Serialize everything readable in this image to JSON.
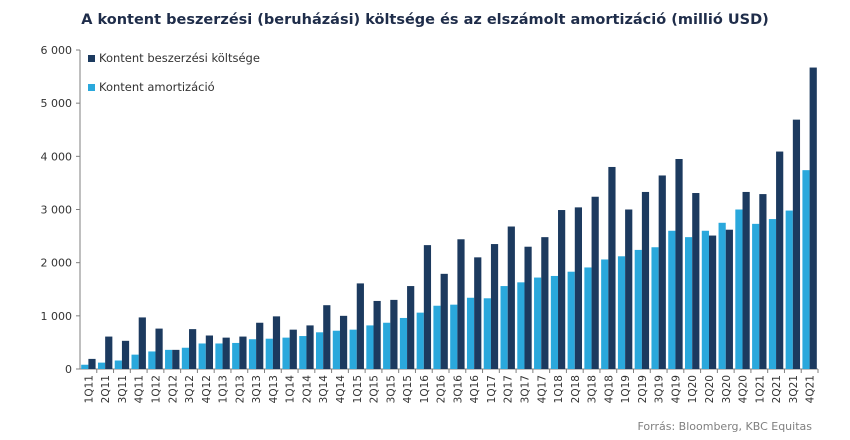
{
  "chart_data": {
    "type": "bar",
    "title": "A kontent beszerzési (beruházási) költsége és az elszámolt amortizáció (millió USD)",
    "source": "Forrás: Bloomberg, KBC Equitas",
    "legend_position": "top-left",
    "grid": false,
    "ylim": [
      0,
      6000
    ],
    "yticks": [
      0,
      1000,
      2000,
      3000,
      4000,
      5000,
      6000
    ],
    "ytick_labels": [
      "0",
      "1 000",
      "2 000",
      "3 000",
      "4 000",
      "5 000",
      "6 000"
    ],
    "categories": [
      "1Q11",
      "2Q11",
      "3Q11",
      "4Q11",
      "1Q12",
      "2Q12",
      "3Q12",
      "4Q12",
      "1Q13",
      "2Q13",
      "3Q13",
      "4Q13",
      "1Q14",
      "2Q14",
      "3Q14",
      "4Q14",
      "1Q15",
      "2Q15",
      "3Q15",
      "4Q15",
      "1Q16",
      "2Q16",
      "3Q16",
      "4Q16",
      "1Q17",
      "2Q17",
      "3Q17",
      "4Q17",
      "1Q18",
      "2Q18",
      "3Q18",
      "4Q18",
      "1Q19",
      "2Q19",
      "3Q19",
      "4Q19",
      "1Q20",
      "2Q20",
      "3Q20",
      "4Q20",
      "1Q21",
      "2Q21",
      "3Q21",
      "4Q21"
    ],
    "series": [
      {
        "name": "Kontent beszerzési költsége",
        "color": "#1c3a5f",
        "values": [
          190,
          610,
          530,
          970,
          760,
          360,
          750,
          630,
          590,
          610,
          870,
          990,
          740,
          820,
          1200,
          1000,
          1610,
          1280,
          1300,
          1560,
          2330,
          1790,
          2440,
          2100,
          2350,
          2680,
          2300,
          2480,
          2990,
          3040,
          3240,
          3800,
          3000,
          3330,
          3640,
          3950,
          3310,
          2510,
          2620,
          3330,
          3290,
          4090,
          4690,
          5670
        ]
      },
      {
        "name": "Kontent amortizáció",
        "color": "#2aa8dc",
        "values": [
          80,
          120,
          160,
          270,
          330,
          360,
          400,
          480,
          480,
          490,
          560,
          570,
          590,
          620,
          690,
          720,
          740,
          820,
          870,
          960,
          1060,
          1190,
          1210,
          1340,
          1330,
          1560,
          1630,
          1720,
          1750,
          1830,
          1910,
          2060,
          2120,
          2240,
          2290,
          2600,
          2480,
          2600,
          2750,
          3000,
          2730,
          2820,
          2980,
          3740
        ]
      }
    ]
  }
}
